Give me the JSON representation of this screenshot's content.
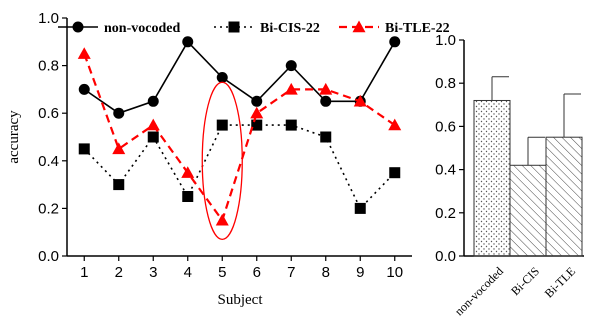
{
  "chart_data": [
    {
      "type": "line",
      "xlabel": "Subject",
      "ylabel": "accuracy",
      "x": [
        1,
        2,
        3,
        4,
        5,
        6,
        7,
        8,
        9,
        10
      ],
      "xlim": [
        0.5,
        10.5
      ],
      "ylim": [
        0,
        1.0
      ],
      "yticks": [
        "0.0",
        "0.2",
        "0.4",
        "0.6",
        "0.8",
        "1.0"
      ],
      "legend_position": "top",
      "series": [
        {
          "name": "non-vocoded",
          "values": [
            0.7,
            0.6,
            0.65,
            0.9,
            0.75,
            0.65,
            0.8,
            0.65,
            0.65,
            0.9
          ],
          "color": "#000000",
          "line": "solid",
          "marker": "circle"
        },
        {
          "name": "Bi-CIS-22",
          "values": [
            0.45,
            0.3,
            0.5,
            0.25,
            0.55,
            0.55,
            0.55,
            0.5,
            0.2,
            0.35
          ],
          "color": "#000000",
          "line": "dotted",
          "marker": "square"
        },
        {
          "name": "Bi-TLE-22",
          "values": [
            0.85,
            0.45,
            0.55,
            0.35,
            0.15,
            0.6,
            0.7,
            0.7,
            0.65,
            0.55
          ],
          "color": "#ff0000",
          "line": "dashed",
          "marker": "triangle"
        }
      ],
      "annotations": [
        {
          "type": "ellipse",
          "x": 5,
          "y_range": [
            0.07,
            0.73
          ],
          "color": "#ff0000"
        }
      ]
    },
    {
      "type": "bar",
      "categories": [
        "non-vocoded",
        "Bi-CIS",
        "Bi-TLE"
      ],
      "values": [
        0.72,
        0.42,
        0.55
      ],
      "errors": [
        0.11,
        0.13,
        0.2
      ],
      "patterns": [
        "dots",
        "diagonal-lines",
        "diagonal-lines"
      ],
      "ylim": [
        0,
        1.0
      ],
      "yticks": [
        "0.0",
        "0.2",
        "0.4",
        "0.6",
        "0.8",
        "1.0"
      ]
    }
  ]
}
